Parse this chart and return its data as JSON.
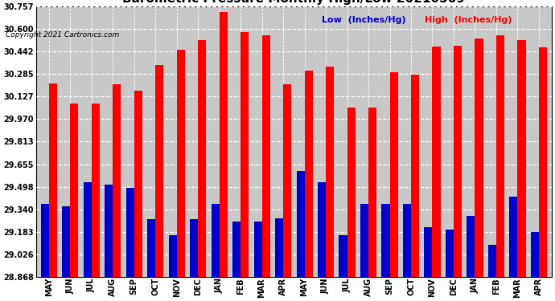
{
  "copyright": "Copyright 2021 Cartronics.com",
  "legend_low": "Low  (Inches/Hg)",
  "legend_high": "High  (Inches/Hg)",
  "categories": [
    "MAY",
    "JUN",
    "JUL",
    "AUG",
    "SEP",
    "OCT",
    "NOV",
    "DEC",
    "JAN",
    "FEB",
    "MAR",
    "APR",
    "MAY",
    "JUN",
    "JUL",
    "AUG",
    "SEP",
    "OCT",
    "NOV",
    "DEC",
    "JAN",
    "FEB",
    "MAR",
    "APR"
  ],
  "high_values": [
    30.22,
    30.08,
    30.08,
    30.215,
    30.17,
    30.35,
    30.455,
    30.52,
    30.72,
    30.58,
    30.555,
    30.215,
    30.31,
    30.335,
    30.05,
    30.05,
    30.3,
    30.28,
    30.48,
    30.485,
    30.535,
    30.558,
    30.522,
    30.47
  ],
  "low_values": [
    29.38,
    29.36,
    29.53,
    29.51,
    29.49,
    29.27,
    29.16,
    29.27,
    29.38,
    29.255,
    29.255,
    29.275,
    29.605,
    29.53,
    29.16,
    29.38,
    29.375,
    29.38,
    29.215,
    29.198,
    29.295,
    29.09,
    29.43,
    29.183
  ],
  "ylim_min": 28.868,
  "ylim_max": 30.757,
  "yticks": [
    28.868,
    29.026,
    29.183,
    29.34,
    29.498,
    29.655,
    29.813,
    29.97,
    30.127,
    30.285,
    30.442,
    30.6,
    30.757
  ],
  "high_color": "#ff0000",
  "low_color": "#0000cc",
  "plot_bg_color": "#c8c8c8",
  "fig_bg_color": "#ffffff",
  "title_fontsize": 11,
  "tick_fontsize": 7,
  "legend_fontsize": 8,
  "copyright_fontsize": 6.5,
  "bar_width": 0.38
}
